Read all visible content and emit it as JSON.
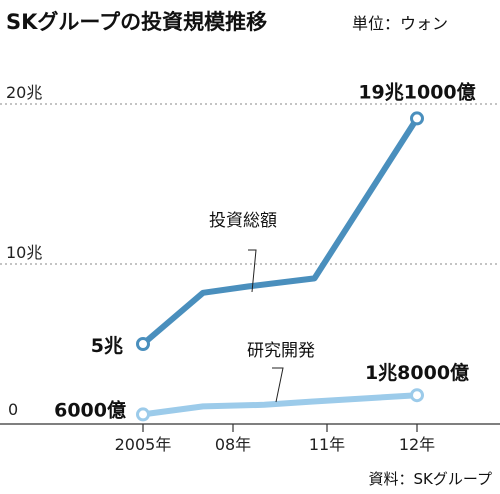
{
  "header": {
    "title": "SKグループの投資規模推移",
    "unit": "単位：ウォン"
  },
  "source": "資料：SKグループ",
  "colors": {
    "investment": "#4a8fbd",
    "rnd": "#9ccbea",
    "grid": "#888888",
    "axis": "#333333"
  },
  "chart_data": {
    "type": "line",
    "title": "SKグループの投資規模推移",
    "unit": "単位：ウォン",
    "categories": [
      "2005年",
      "08年",
      "11年",
      "12年"
    ],
    "x": [
      2005,
      2008,
      2011,
      2012
    ],
    "y_ticks": [
      {
        "value": 0,
        "label": "0"
      },
      {
        "value": 10,
        "label": "10兆"
      },
      {
        "value": 20,
        "label": "20兆"
      }
    ],
    "ylim": [
      0,
      20
    ],
    "series": [
      {
        "key": "investment",
        "name": "投資総額",
        "x": [
          2005,
          2007,
          2008.5,
          2010.6,
          2012
        ],
        "values": [
          5,
          8.2,
          8.6,
          9.1,
          19.1
        ],
        "start_label": "5兆",
        "end_label": "19兆1000億"
      },
      {
        "key": "rnd",
        "name": "研究開発",
        "x": [
          2005,
          2007,
          2009,
          2010.5,
          2012
        ],
        "values": [
          0.6,
          1.1,
          1.2,
          1.4,
          1.8
        ],
        "start_label": "6000億",
        "end_label": "1兆8000億"
      }
    ]
  }
}
